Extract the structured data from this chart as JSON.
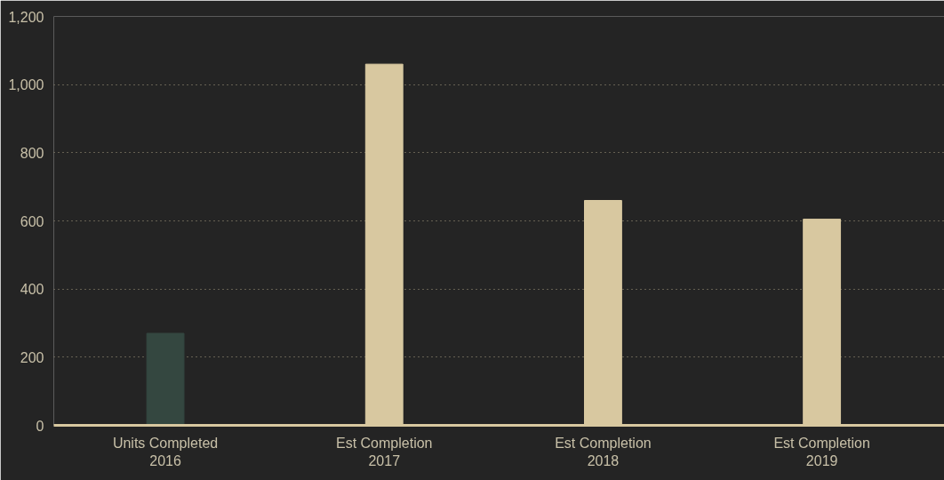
{
  "chart_data": {
    "type": "bar",
    "categories": [
      "Units Completed\n2016",
      "Est Completion\n2017",
      "Est Completion\n2018",
      "Est Completion\n2019"
    ],
    "values": [
      270,
      1060,
      660,
      605
    ],
    "colors": [
      "#344740",
      "#d8c8a0",
      "#d8c8a0",
      "#d8c8a0"
    ],
    "ylim": [
      0,
      1200
    ],
    "yticks": [
      0,
      {
        "value": 200,
        "label": "200"
      },
      {
        "value": 400,
        "label": "400"
      },
      {
        "value": 600,
        "label": "600"
      },
      {
        "value": 800,
        "label": "800"
      },
      {
        "value": 1000,
        "label": "1,000"
      },
      {
        "value": 1200,
        "label": "1,200"
      }
    ],
    "grid": "y"
  }
}
